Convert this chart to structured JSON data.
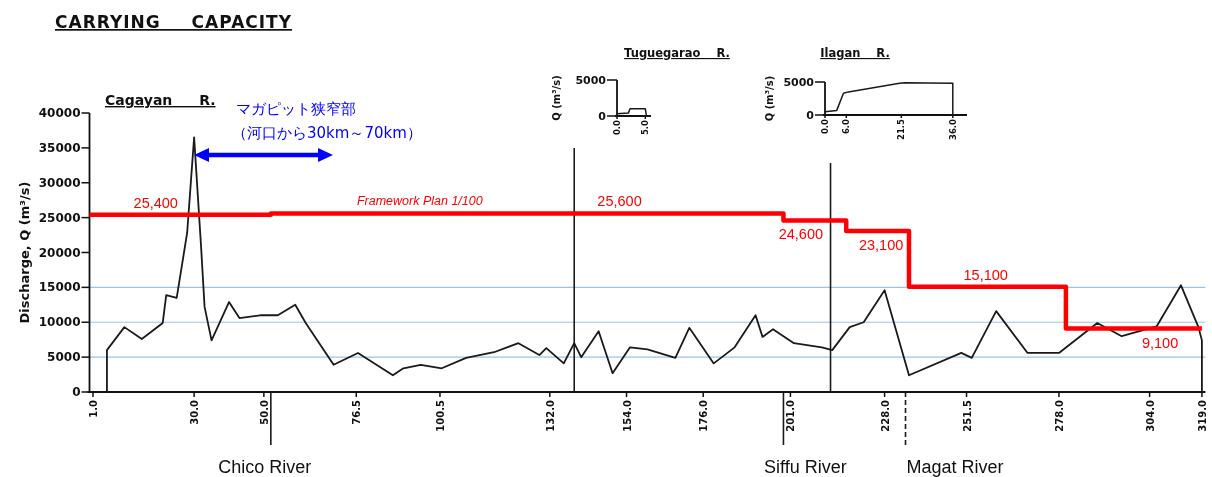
{
  "chart_data": [
    {
      "type": "line",
      "title": "Cagayan R.",
      "ylabel": "Discharge, Q (m³/s)",
      "xlim": [
        0,
        320
      ],
      "xticks": [
        {
          "value": 1,
          "label": "1.0"
        },
        {
          "value": 30,
          "label": "30.0"
        },
        {
          "value": 50,
          "label": "50.0"
        },
        {
          "value": 76.5,
          "label": "76.5"
        },
        {
          "value": 100.5,
          "label": "100.5"
        },
        {
          "value": 132,
          "label": "132.0"
        },
        {
          "value": 154,
          "label": "154.0"
        },
        {
          "value": 176,
          "label": "176.0"
        },
        {
          "value": 201,
          "label": "201.0"
        },
        {
          "value": 228,
          "label": "228.0"
        },
        {
          "value": 251.5,
          "label": "251.5"
        },
        {
          "value": 278,
          "label": "278.0"
        },
        {
          "value": 304,
          "label": "304.0"
        },
        {
          "value": 319,
          "label": "319.0"
        }
      ],
      "ylim": [
        0,
        40000
      ],
      "yticks": [
        0,
        5000,
        10000,
        15000,
        20000,
        25000,
        30000,
        35000,
        40000
      ],
      "series": [
        {
          "type": "line",
          "color": "#1a1a1a",
          "x": [
            5,
            5,
            10,
            15,
            21,
            22,
            25,
            28,
            30,
            32,
            33,
            35,
            40,
            43,
            49,
            54,
            59,
            62,
            70,
            77,
            87,
            90,
            95,
            101,
            108,
            116,
            123,
            129,
            131,
            136,
            139,
            141,
            146,
            150,
            155,
            160,
            168,
            172,
            179,
            185,
            191,
            193,
            196,
            202,
            210,
            213,
            218,
            222,
            228,
            235,
            250,
            253,
            260,
            269,
            278,
            289,
            296,
            306,
            313,
            318,
            319,
            319
          ],
          "values": [
            0,
            6000,
            9300,
            7600,
            9900,
            13900,
            13500,
            22800,
            36500,
            20800,
            12200,
            7400,
            12900,
            10600,
            11000,
            11000,
            12500,
            9900,
            3900,
            5600,
            2400,
            3400,
            3900,
            3400,
            4900,
            5700,
            7000,
            5300,
            6300,
            4100,
            7000,
            5000,
            8700,
            2700,
            6400,
            6100,
            4900,
            9200,
            4100,
            6400,
            11000,
            7900,
            9000,
            7000,
            6400,
            6000,
            9300,
            10000,
            14600,
            2400,
            5600,
            4900,
            11600,
            5600,
            5600,
            9900,
            8000,
            9400,
            15300,
            9300,
            7400,
            0
          ]
        },
        {
          "type": "step",
          "name": "Framework Plan 1/100",
          "color": "#ff0000",
          "x": [
            0,
            19,
            52,
            152,
            199,
            204,
            217,
            227,
            235,
            257,
            280,
            307,
            319
          ],
          "values": [
            25400,
            25400,
            25600,
            25600,
            24600,
            24600,
            23100,
            23100,
            15100,
            15100,
            9100,
            9100,
            9100
          ],
          "value_labels": [
            null,
            "25,400",
            null,
            "25,600",
            null,
            "24,600",
            null,
            "23,100",
            null,
            "15,100",
            null,
            "9,100",
            null
          ]
        }
      ],
      "ref_lines": [
        {
          "axis": "y",
          "value": 5000,
          "color": "#9dc3e6"
        },
        {
          "axis": "y",
          "value": 10000,
          "color": "#9dc3e6"
        },
        {
          "axis": "y",
          "value": 15000,
          "color": "#9dc3e6"
        },
        {
          "axis": "x",
          "value": 139,
          "color": "#1a1a1a"
        },
        {
          "axis": "x",
          "value": 212.5,
          "color": "#1a1a1a"
        },
        {
          "axis": "x",
          "value": 52,
          "label": "Chico River",
          "color": "#1a1a1a"
        },
        {
          "axis": "x",
          "value": 199,
          "label": "Siffu River",
          "color": "#1a1a1a"
        },
        {
          "axis": "x",
          "value": 234,
          "label": "Magat River",
          "color": "#1a1a1a",
          "line_style": "dashed"
        }
      ],
      "annotations": [
        "CARRYING CAPACITY",
        "マガピット狭窄部",
        "（河口から30km～70km）"
      ]
    },
    {
      "type": "line",
      "title": "Tuguegarao R.",
      "ylabel": "Q (m³/s)",
      "xlim": [
        0,
        6
      ],
      "xticks": [
        {
          "value": 0,
          "label": "0.0"
        },
        {
          "value": 5,
          "label": "5.0"
        }
      ],
      "ylim": [
        0,
        5000
      ],
      "yticks": [
        0,
        5000
      ],
      "series": [
        {
          "color": "#1a1a1a",
          "x": [
            0,
            2,
            2.3,
            5,
            5.2
          ],
          "values": [
            300,
            400,
            1000,
            1000,
            0
          ]
        }
      ]
    },
    {
      "type": "line",
      "title": "Ilagan R.",
      "ylabel": "Q (m³/s)",
      "xlim": [
        0,
        40
      ],
      "xticks": [
        {
          "value": 0,
          "label": "0.0"
        },
        {
          "value": 6,
          "label": "6.0"
        },
        {
          "value": 21.5,
          "label": "21.5"
        },
        {
          "value": 36,
          "label": "36.0"
        }
      ],
      "ylim": [
        0,
        5000
      ],
      "yticks": [
        0,
        5000
      ],
      "series": [
        {
          "color": "#1a1a1a",
          "x": [
            0,
            3.3,
            5.2,
            6.6,
            21,
            22.5,
            36,
            36
          ],
          "values": [
            500,
            700,
            3300,
            3500,
            4800,
            4900,
            4800,
            0
          ]
        }
      ]
    }
  ]
}
